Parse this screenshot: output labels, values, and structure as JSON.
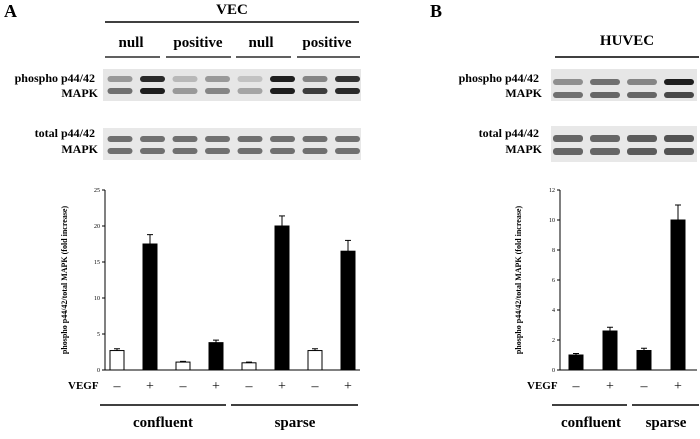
{
  "panels": {
    "a": {
      "letter": "A",
      "cell_line": "VEC",
      "group_labels": [
        "null",
        "positive",
        "null",
        "positive"
      ],
      "blots": {
        "phospho_label": [
          "phospho p44/42",
          "MAPK"
        ],
        "total_label": [
          "total p44/42",
          "MAPK"
        ],
        "phospho_lanes": [
          {
            "top": 0.35,
            "bottom": 0.55
          },
          {
            "top": 0.9,
            "bottom": 0.95
          },
          {
            "top": 0.2,
            "bottom": 0.35
          },
          {
            "top": 0.35,
            "bottom": 0.45
          },
          {
            "top": 0.15,
            "bottom": 0.3
          },
          {
            "top": 0.95,
            "bottom": 0.95
          },
          {
            "top": 0.45,
            "bottom": 0.8
          },
          {
            "top": 0.85,
            "bottom": 0.9
          }
        ],
        "total_lanes": [
          0.55,
          0.55,
          0.55,
          0.55,
          0.55,
          0.55,
          0.55,
          0.55
        ]
      },
      "vegf_label": "VEGF",
      "vegf_signs": [
        "–",
        "+",
        "–",
        "+",
        "–",
        "+",
        "–",
        "+"
      ],
      "condition_labels": [
        "confluent",
        "sparse"
      ]
    },
    "b": {
      "letter": "B",
      "cell_line": "HUVEC",
      "blots": {
        "phospho_label": [
          "phospho p44/42",
          "MAPK"
        ],
        "total_label": [
          "total p44/42",
          "MAPK"
        ],
        "phospho_lanes": [
          {
            "top": 0.4,
            "bottom": 0.55
          },
          {
            "top": 0.55,
            "bottom": 0.6
          },
          {
            "top": 0.45,
            "bottom": 0.6
          },
          {
            "top": 0.95,
            "bottom": 0.75
          }
        ],
        "total_lanes": [
          0.6,
          0.6,
          0.65,
          0.7
        ]
      },
      "vegf_label": "VEGF",
      "vegf_signs": [
        "–",
        "+",
        "–",
        "+"
      ],
      "condition_labels": [
        "confluent",
        "sparse"
      ]
    }
  },
  "chart_data": [
    {
      "type": "bar",
      "panel": "A",
      "ylabel": "phospho p44/42/total MAPK (fold increase)",
      "ylim": [
        0,
        25
      ],
      "yticks": [
        0,
        5,
        10,
        15,
        20,
        25
      ],
      "categories": [
        "–",
        "+",
        "–",
        "+",
        "–",
        "+",
        "–",
        "+"
      ],
      "values": [
        2.7,
        17.5,
        1.1,
        3.8,
        1.0,
        20.0,
        2.7,
        16.5
      ],
      "errors": [
        0.25,
        1.3,
        0.1,
        0.35,
        0.1,
        1.4,
        0.25,
        1.5
      ],
      "bar_fills": [
        "#ffffff",
        "#000000",
        "#ffffff",
        "#000000",
        "#ffffff",
        "#000000",
        "#ffffff",
        "#000000"
      ],
      "grid": false
    },
    {
      "type": "bar",
      "panel": "B",
      "ylabel": "phospho p44/42/total MAPK (fold increase)",
      "ylim": [
        0,
        12
      ],
      "yticks": [
        0,
        2,
        4,
        6,
        8,
        10,
        12
      ],
      "categories": [
        "–",
        "+",
        "–",
        "+"
      ],
      "values": [
        1.0,
        2.6,
        1.3,
        10.0
      ],
      "errors": [
        0.1,
        0.25,
        0.15,
        1.0
      ],
      "bar_fills": [
        "#000000",
        "#000000",
        "#000000",
        "#000000"
      ],
      "grid": false
    }
  ]
}
